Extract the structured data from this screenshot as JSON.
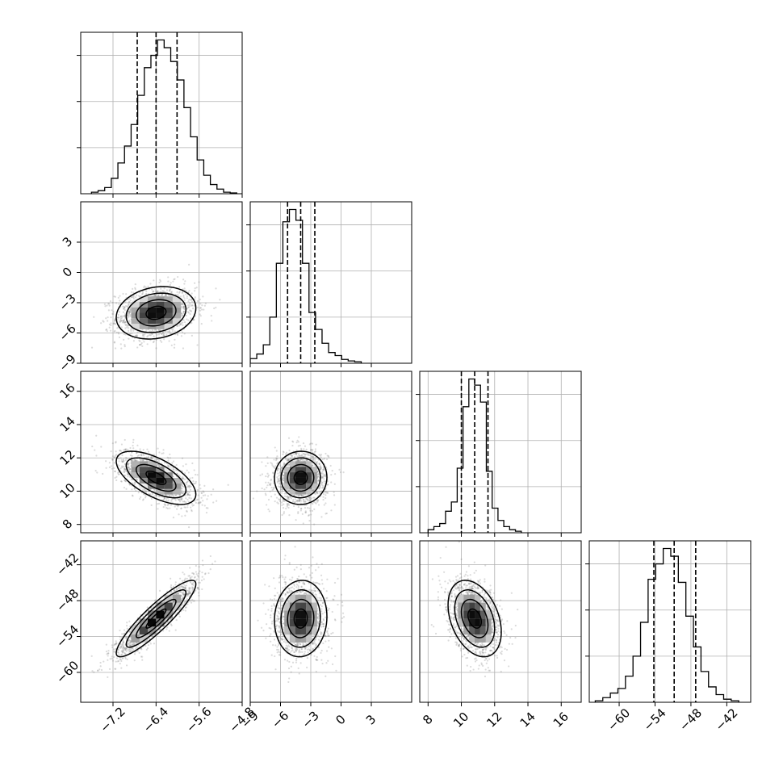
{
  "chart_data": {
    "type": "corner",
    "grid": true,
    "hist_color": "#000000",
    "contour_color": "#000000",
    "scatter_color": "#7f7f7f",
    "params": [
      {
        "range": [
          -7.8,
          -4.8
        ],
        "ticks": [
          -7.2,
          -6.4,
          -5.6,
          -4.8
        ],
        "tick_labels": [
          "−7.2",
          "−6.4",
          "−5.6",
          "−4.8"
        ],
        "mean": -6.4,
        "sigma": 0.37,
        "quantiles": [
          -6.75,
          -6.4,
          -6.01
        ],
        "hist": {
          "range": [
            -7.6,
            -4.9
          ],
          "values": [
            0.01,
            0.02,
            0.04,
            0.1,
            0.2,
            0.31,
            0.45,
            0.64,
            0.82,
            0.9,
            1.0,
            0.95,
            0.86,
            0.74,
            0.56,
            0.37,
            0.22,
            0.12,
            0.06,
            0.03,
            0.01,
            0.005
          ]
        }
      },
      {
        "range": [
          -9,
          7
        ],
        "ticks": [
          -9,
          -6,
          -3,
          0,
          3
        ],
        "tick_labels": [
          "−9",
          "−6",
          "−3",
          "0",
          "3"
        ],
        "mean": -4.0,
        "sigma": 1.3,
        "quantiles": [
          -5.3,
          -4.0,
          -2.6
        ],
        "hist": {
          "range": [
            -9,
            2
          ],
          "values": [
            0.03,
            0.06,
            0.12,
            0.3,
            0.65,
            0.92,
            1.0,
            0.93,
            0.65,
            0.33,
            0.22,
            0.13,
            0.07,
            0.05,
            0.025,
            0.015,
            0.01
          ]
        }
      },
      {
        "range": [
          7.5,
          17.2
        ],
        "ticks": [
          8,
          10,
          12,
          14,
          16
        ],
        "tick_labels": [
          "8",
          "10",
          "12",
          "14",
          "16"
        ],
        "mean": 10.8,
        "sigma": 0.8,
        "quantiles": [
          10.0,
          10.8,
          11.6
        ],
        "hist": {
          "range": [
            8,
            13.6
          ],
          "values": [
            0.02,
            0.04,
            0.06,
            0.14,
            0.2,
            0.42,
            0.82,
            1.0,
            0.96,
            0.85,
            0.4,
            0.16,
            0.08,
            0.04,
            0.02,
            0.01
          ]
        }
      },
      {
        "range": [
          -65,
          -38
        ],
        "ticks": [
          -60,
          -54,
          -48,
          -42
        ],
        "tick_labels": [
          "−60",
          "−54",
          "−48",
          "−42"
        ],
        "mean": -51.0,
        "sigma": 3.2,
        "quantiles": [
          -54.2,
          -50.8,
          -47.2
        ],
        "hist": {
          "range": [
            -64,
            -40
          ],
          "values": [
            0.01,
            0.03,
            0.06,
            0.09,
            0.17,
            0.3,
            0.52,
            0.8,
            0.9,
            1.0,
            0.95,
            0.78,
            0.56,
            0.36,
            0.2,
            0.1,
            0.05,
            0.02,
            0.01
          ]
        }
      }
    ],
    "correlations": [
      {
        "i": 1,
        "j": 0,
        "rho": 0.18
      },
      {
        "i": 2,
        "j": 0,
        "rho": -0.62
      },
      {
        "i": 2,
        "j": 1,
        "rho": 0.02
      },
      {
        "i": 3,
        "j": 0,
        "rho": 0.9
      },
      {
        "i": 3,
        "j": 1,
        "rho": 0.05
      },
      {
        "i": 3,
        "j": 2,
        "rho": -0.35
      }
    ],
    "hist_yticks": [
      0.3,
      0.6,
      0.9
    ]
  }
}
